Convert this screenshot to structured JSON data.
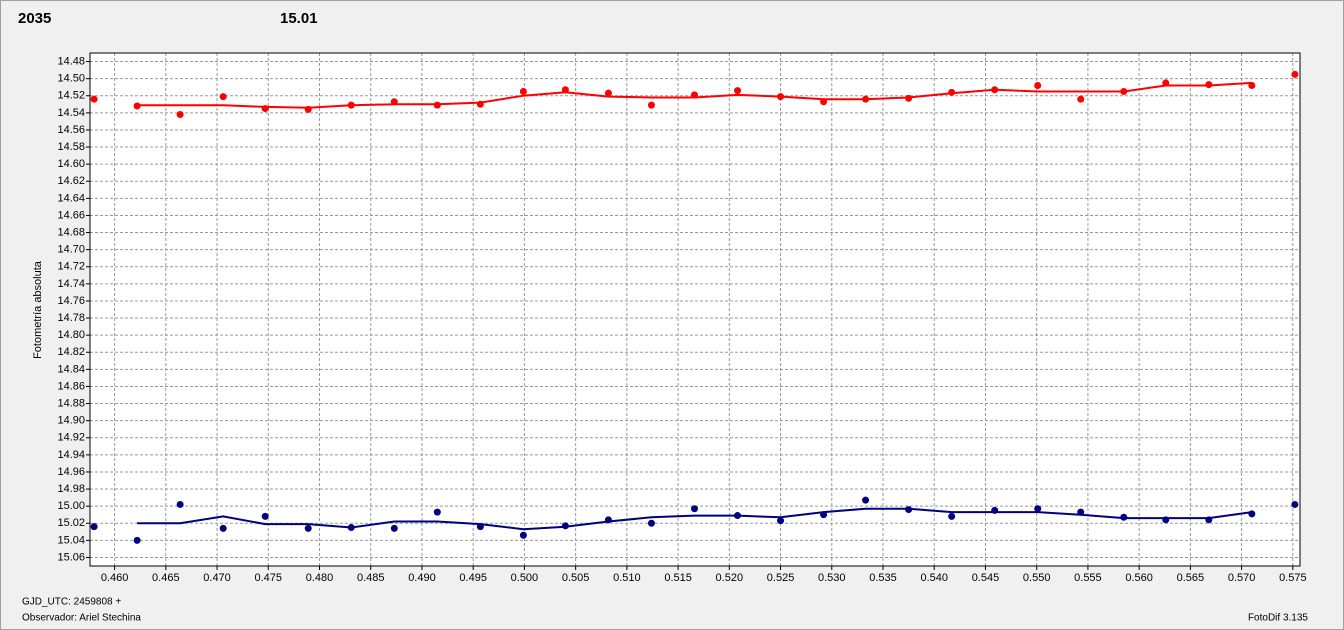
{
  "chart_data": {
    "type": "scatter",
    "ylabel": "Fotometría absoluta",
    "footer_left_1": "GJD_UTC: 2459808 +",
    "footer_left_2": "Observador: Ariel Stechina",
    "footer_right": "FotoDif 3.135",
    "xlim": [
      0.4576,
      0.5757
    ],
    "ylim": [
      15.07,
      14.47
    ],
    "grid": true,
    "xticks": [
      {
        "value": 0.46,
        "label": "0.460"
      },
      0.465,
      {
        "value": 0.47,
        "label": "0.470"
      },
      0.475,
      {
        "value": 0.48,
        "label": "0.480"
      },
      0.485,
      {
        "value": 0.49,
        "label": "0.490"
      },
      0.495,
      {
        "value": 0.5,
        "label": "0.500"
      },
      0.505,
      {
        "value": 0.51,
        "label": "0.510"
      },
      0.515,
      {
        "value": 0.52,
        "label": "0.520"
      },
      0.525,
      {
        "value": 0.53,
        "label": "0.530"
      },
      0.535,
      {
        "value": 0.54,
        "label": "0.540"
      },
      0.545,
      {
        "value": 0.55,
        "label": "0.550"
      },
      0.555,
      {
        "value": 0.56,
        "label": "0.560"
      },
      0.565,
      {
        "value": 0.57,
        "label": "0.570"
      },
      0.575
    ],
    "yticks": [
      14.48,
      {
        "value": 14.5,
        "label": "14.50"
      },
      14.52,
      14.54,
      14.56,
      14.58,
      {
        "value": 14.6,
        "label": "14.60"
      },
      14.62,
      14.64,
      14.66,
      14.68,
      {
        "value": 14.7,
        "label": "14.70"
      },
      14.72,
      14.74,
      14.76,
      14.78,
      {
        "value": 14.8,
        "label": "14.80"
      },
      14.82,
      14.84,
      14.86,
      14.88,
      {
        "value": 14.9,
        "label": "14.90"
      },
      14.92,
      14.94,
      14.96,
      14.98,
      {
        "value": 15.0,
        "label": "15.00"
      },
      15.02,
      15.04,
      15.06
    ],
    "series": [
      {
        "name": "2035",
        "color": "#ff0000",
        "x": [
          0.458,
          0.4622,
          0.4664,
          0.4706,
          0.4747,
          0.4789,
          0.4831,
          0.4873,
          0.4915,
          0.4957,
          0.4999,
          0.504,
          0.5082,
          0.5124,
          0.5166,
          0.5208,
          0.525,
          0.5292,
          0.5333,
          0.5375,
          0.5417,
          0.5459,
          0.5501,
          0.5543,
          0.5585,
          0.5626,
          0.5668,
          0.571,
          0.5752
        ],
        "values": [
          14.524,
          14.532,
          14.542,
          14.521,
          14.535,
          14.536,
          14.531,
          14.527,
          14.531,
          14.53,
          14.515,
          14.513,
          14.517,
          14.531,
          14.519,
          14.514,
          14.521,
          14.527,
          14.524,
          14.523,
          14.516,
          14.513,
          14.508,
          14.524,
          14.515,
          14.505,
          14.507,
          14.508,
          14.495
        ],
        "fit": {
          "x": [
            0.4622,
            0.4664,
            0.4706,
            0.4747,
            0.4789,
            0.4831,
            0.4873,
            0.4915,
            0.4957,
            0.4999,
            0.504,
            0.5082,
            0.5124,
            0.5166,
            0.5208,
            0.525,
            0.5292,
            0.5333,
            0.5375,
            0.5417,
            0.5459,
            0.5501,
            0.5543,
            0.5585,
            0.5626,
            0.5668,
            0.571
          ],
          "values": [
            14.531,
            14.531,
            14.531,
            14.533,
            14.534,
            14.531,
            14.53,
            14.53,
            14.528,
            14.52,
            14.516,
            14.521,
            14.522,
            14.522,
            14.519,
            14.521,
            14.524,
            14.524,
            14.522,
            14.517,
            14.513,
            14.515,
            14.515,
            14.515,
            14.508,
            14.508,
            14.505
          ]
        }
      },
      {
        "name": "15.01",
        "color": "#000080",
        "x": [
          0.458,
          0.4622,
          0.4664,
          0.4706,
          0.4747,
          0.4789,
          0.4831,
          0.4873,
          0.4915,
          0.4957,
          0.4999,
          0.504,
          0.5082,
          0.5124,
          0.5166,
          0.5208,
          0.525,
          0.5292,
          0.5333,
          0.5375,
          0.5417,
          0.5459,
          0.5501,
          0.5543,
          0.5585,
          0.5626,
          0.5668,
          0.571,
          0.5752
        ],
        "values": [
          15.024,
          15.04,
          14.998,
          15.026,
          15.012,
          15.026,
          15.025,
          15.026,
          15.007,
          15.024,
          15.034,
          15.023,
          15.016,
          15.02,
          15.003,
          15.011,
          15.017,
          15.01,
          14.993,
          15.004,
          15.012,
          15.005,
          15.003,
          15.007,
          15.013,
          15.016,
          15.016,
          15.009,
          14.998
        ],
        "fit": {
          "x": [
            0.4622,
            0.4664,
            0.4706,
            0.4747,
            0.4789,
            0.4831,
            0.4873,
            0.4915,
            0.4957,
            0.4999,
            0.504,
            0.5082,
            0.5124,
            0.5166,
            0.5208,
            0.525,
            0.5292,
            0.5333,
            0.5375,
            0.5417,
            0.5459,
            0.5501,
            0.5543,
            0.5585,
            0.5626,
            0.5668,
            0.571
          ],
          "values": [
            15.02,
            15.02,
            15.012,
            15.021,
            15.021,
            15.025,
            15.018,
            15.018,
            15.021,
            15.027,
            15.024,
            15.018,
            15.013,
            15.011,
            15.011,
            15.013,
            15.007,
            15.003,
            15.003,
            15.007,
            15.007,
            15.007,
            15.01,
            15.014,
            15.014,
            15.014,
            15.007
          ]
        }
      }
    ]
  }
}
